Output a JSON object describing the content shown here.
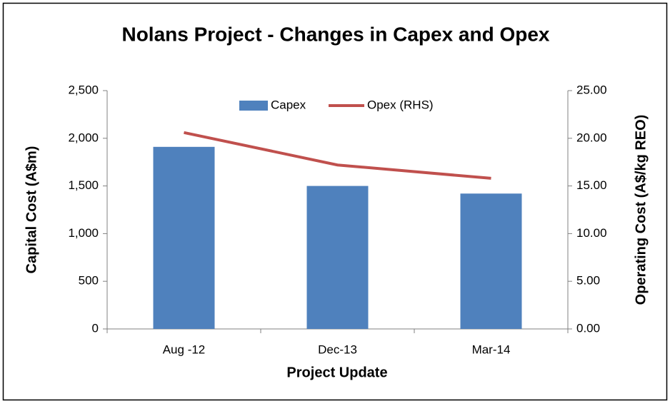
{
  "chart_data": {
    "type": "bar_line",
    "title": "Nolans Project - Changes in Capex and Opex",
    "x_label": "Project Update",
    "y_label": "Capital Cost (A$m)",
    "y2_label": "Operating Cost (A$/kg REO)",
    "categories": [
      "Aug -12",
      "Dec-13",
      "Mar-14"
    ],
    "series": [
      {
        "name": "Capex",
        "type": "bar",
        "color": "#4f81bd",
        "values": [
          1910,
          1500,
          1420
        ]
      },
      {
        "name": "Opex (RHS)",
        "type": "line",
        "color": "#c0504d",
        "axis": "y2",
        "values": [
          20.6,
          17.2,
          15.8
        ]
      }
    ],
    "ylim": [
      0,
      2500
    ],
    "yticks": [
      0,
      {
        "value": 500,
        "label": "500"
      },
      {
        "value": 1000,
        "label": "1,000"
      },
      {
        "value": 1500,
        "label": "1,500"
      },
      {
        "value": 2000,
        "label": "2,000"
      },
      {
        "value": 2500,
        "label": "2,500"
      }
    ],
    "y2lim": [
      0,
      25
    ],
    "y2ticks": [
      {
        "value": 0,
        "label": "0.00"
      },
      {
        "value": 5,
        "label": "5.00"
      },
      {
        "value": 10,
        "label": "10.00"
      },
      {
        "value": 15,
        "label": "15.00"
      },
      {
        "value": 20,
        "label": "20.00"
      },
      {
        "value": 25,
        "label": "25.00"
      }
    ],
    "legend": "top",
    "grid": false
  }
}
